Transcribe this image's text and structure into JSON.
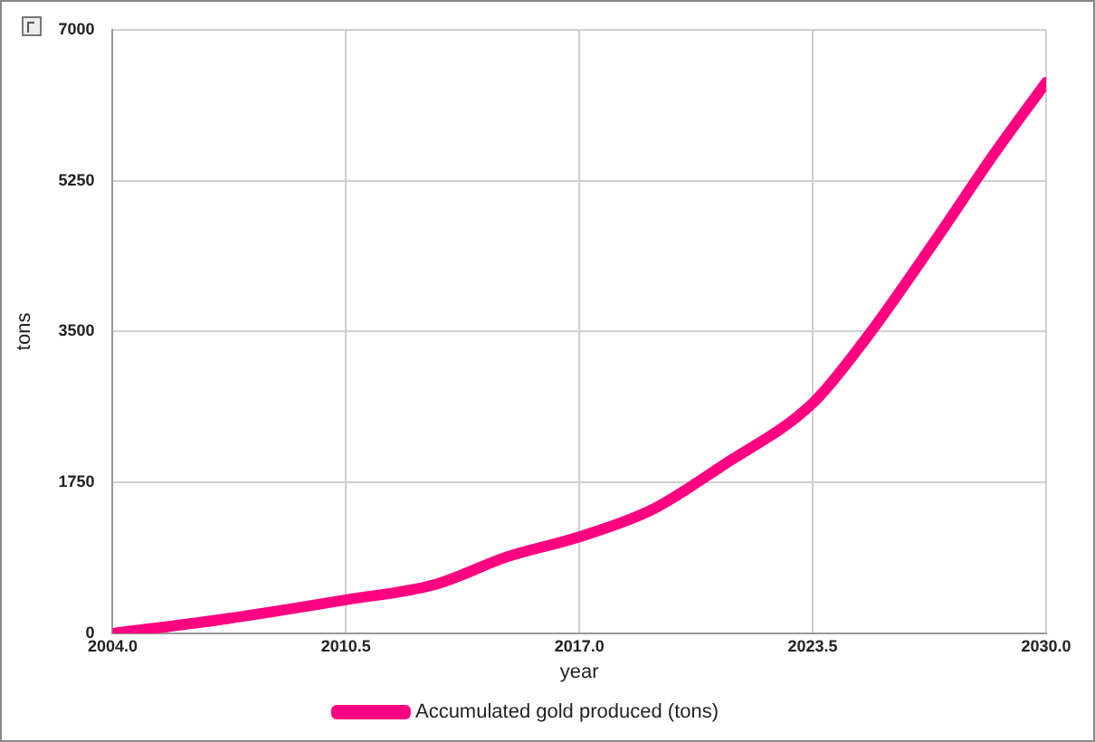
{
  "chart_data": {
    "type": "line",
    "xlabel": "year",
    "ylabel": "tons",
    "x": [
      2004,
      2007,
      2010.5,
      2013,
      2015,
      2017,
      2019,
      2021,
      2023.5,
      2025,
      2027,
      2028.5,
      2030
    ],
    "series": [
      {
        "name": "Accumulated gold produced (tons)",
        "color": "#ff0080",
        "values": [
          0,
          160,
          390,
          570,
          890,
          1120,
          1430,
          1950,
          2670,
          3430,
          4610,
          5530,
          6390
        ]
      }
    ],
    "xlim": [
      2004,
      2030
    ],
    "xticks": [
      {
        "value": 2004,
        "label": "2004.0"
      },
      {
        "value": 2010.5,
        "label": "2010.5"
      },
      {
        "value": 2017,
        "label": "2017.0"
      },
      {
        "value": 2023.5,
        "label": "2023.5"
      },
      {
        "value": 2030,
        "label": "2030.0"
      }
    ],
    "ylim": [
      0,
      7000
    ],
    "yticks": [
      0,
      1750,
      3500,
      5250,
      7000
    ],
    "grid": true,
    "legend": "bottom",
    "marker": "none",
    "line_style": "solid"
  }
}
